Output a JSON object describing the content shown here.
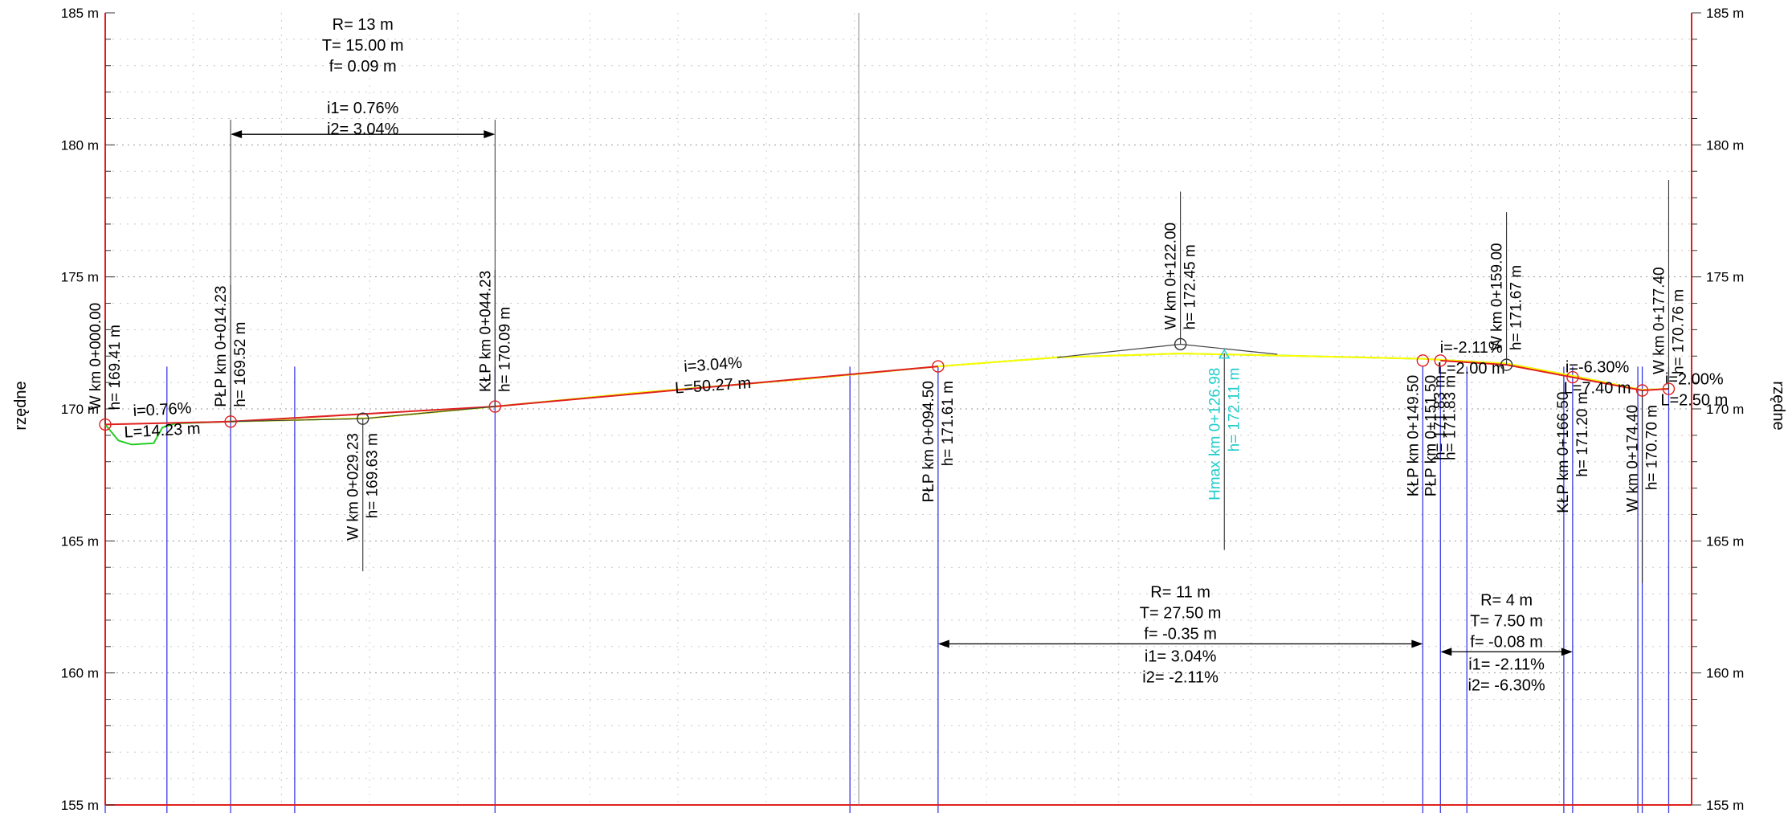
{
  "axis": {
    "label": "rzędne",
    "unit": "m",
    "y_range": [
      155,
      185
    ],
    "ticks": [
      "155 m",
      "160 m",
      "165 m",
      "170 m",
      "175 m",
      "180 m",
      "185 m"
    ],
    "x_range_m": [
      0,
      180
    ]
  },
  "colors": {
    "frame": "#e02020",
    "design": "#e02020",
    "terrain": "#22cc22",
    "terrain_alt": "#ffff00",
    "blue": "#3a3ae8",
    "text": "#000000",
    "highlight": "#22cccc",
    "marker": "#e02020"
  },
  "points": [
    {
      "id": "w-0",
      "x": 0.0,
      "h": 169.41,
      "label": "W  km 0+000.00",
      "hlabel": "h= 169.41 m",
      "side": "up",
      "marker": "red"
    },
    {
      "id": "plp-14",
      "x": 14.23,
      "h": 169.52,
      "label": "PŁP  km 0+014.23",
      "hlabel": "h= 169.52 m",
      "side": "up",
      "marker": "red"
    },
    {
      "id": "w-29",
      "x": 29.23,
      "h": 169.63,
      "label": "W  km 0+029.23",
      "hlabel": "h= 169.63 m",
      "side": "down",
      "marker": "black"
    },
    {
      "id": "klp-44",
      "x": 44.23,
      "h": 170.09,
      "label": "KŁP  km 0+044.23",
      "hlabel": "h= 170.09 m",
      "side": "up",
      "marker": "red"
    },
    {
      "id": "plp-94",
      "x": 94.5,
      "h": 171.61,
      "label": "PŁP  km 0+094.50",
      "hlabel": "h= 171.61 m",
      "side": "down",
      "marker": "red"
    },
    {
      "id": "w-122",
      "x": 122.0,
      "h": 172.45,
      "label": "W  km 0+122.00",
      "hlabel": "h= 172.45 m",
      "side": "up",
      "marker": "black"
    },
    {
      "id": "hmax",
      "x": 126.98,
      "h": 172.11,
      "label": "Hmax  km 0+126.98",
      "hlabel": "h= 172.11 m",
      "side": "down",
      "marker": "cyan"
    },
    {
      "id": "klp-149",
      "x": 149.5,
      "h": 171.83,
      "label": "KŁP  km 0+149.50",
      "hlabel": "",
      "side": "down",
      "marker": "red"
    },
    {
      "id": "plp-151",
      "x": 151.5,
      "h": 171.83,
      "label": "PŁP  km 0+151.50",
      "hlabel": "h= 171.83 m",
      "side": "down",
      "marker": "red"
    },
    {
      "id": "w-159",
      "x": 159.0,
      "h": 171.67,
      "label": "W  km 0+159.00",
      "hlabel": "h= 171.67 m",
      "side": "up",
      "marker": "black"
    },
    {
      "id": "klp-166",
      "x": 166.5,
      "h": 171.2,
      "label": "KŁP  km 0+166.50",
      "hlabel": "h= 171.20 m",
      "side": "down",
      "marker": "red"
    },
    {
      "id": "w-174",
      "x": 174.4,
      "h": 170.7,
      "label": "W  km 0+174.40",
      "hlabel": "h= 170.70 m",
      "side": "down",
      "marker": "red"
    },
    {
      "id": "w-177",
      "x": 177.4,
      "h": 170.76,
      "label": "W  km 0+177.40",
      "hlabel": "h= 170.76 m",
      "side": "up",
      "marker": "red"
    }
  ],
  "overlap_label": "h= 171.83 m",
  "grades": [
    {
      "id": "g1",
      "i": "i=0.76%",
      "L": "L=14.23 m"
    },
    {
      "id": "g2",
      "i": "i=3.04%",
      "L": "L=50.27 m"
    },
    {
      "id": "g3",
      "i": "i=-2.11%",
      "L": "L=2.00 m"
    },
    {
      "id": "g4",
      "i": "i=-6.30%",
      "L": "L=7.40 m"
    },
    {
      "id": "g5",
      "i": "i=2.00%",
      "L": "L=2.50 m"
    }
  ],
  "curves": [
    {
      "id": "c1",
      "from": 14.23,
      "to": 44.23,
      "arrow_h": 180.4,
      "lines": [
        "R= 13 m",
        "T= 15.00 m",
        "f= 0.09 m",
        "i1= 0.76%",
        "i2= 3.04%"
      ]
    },
    {
      "id": "c2",
      "from": 94.5,
      "to": 149.5,
      "arrow_h": 161.1,
      "lines": [
        "R= 11 m",
        "T= 27.50 m",
        "f= -0.35 m",
        "i1= 3.04%",
        "i2= -2.11%"
      ]
    },
    {
      "id": "c3",
      "from": 151.5,
      "to": 166.5,
      "arrow_h": 160.8,
      "lines": [
        "R= 4 m",
        "T= 7.50 m",
        "f= -0.08 m",
        "i1= -2.11%",
        "i2= -6.30%"
      ]
    }
  ],
  "design_profile": [
    [
      0,
      169.41
    ],
    [
      14.23,
      169.52
    ],
    [
      44.23,
      170.09
    ],
    [
      94.5,
      171.61
    ],
    [
      108,
      171.72
    ],
    [
      122,
      171.75
    ],
    [
      136,
      171.75
    ],
    [
      149.5,
      171.83
    ],
    [
      151.5,
      171.83
    ],
    [
      159,
      171.67
    ],
    [
      166.5,
      171.2
    ],
    [
      174.4,
      170.7
    ],
    [
      177.4,
      170.76
    ]
  ],
  "terrain_profile": [
    [
      0,
      169.41
    ],
    [
      1.5,
      168.8
    ],
    [
      3,
      168.65
    ],
    [
      5.5,
      168.7
    ],
    [
      6.5,
      169.3
    ],
    [
      8,
      169.45
    ],
    [
      14.23,
      169.52
    ],
    [
      30,
      169.65
    ],
    [
      44.23,
      170.09
    ],
    [
      60,
      170.6
    ],
    [
      80,
      171.15
    ],
    [
      94.5,
      171.61
    ],
    [
      108,
      171.95
    ],
    [
      122,
      172.1
    ],
    [
      136,
      172.0
    ],
    [
      149.5,
      171.9
    ],
    [
      159,
      171.72
    ],
    [
      166.5,
      171.25
    ],
    [
      174.4,
      170.72
    ],
    [
      177.4,
      170.76
    ]
  ]
}
